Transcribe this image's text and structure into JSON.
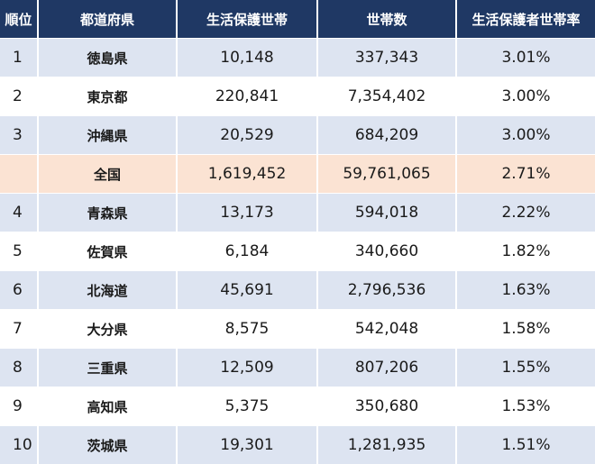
{
  "table": {
    "headers": [
      "順位",
      "都道府県",
      "生活保護世帯",
      "世帯数",
      "生活保護者世帯率"
    ],
    "rows": [
      {
        "rank": "1",
        "pref": "徳島県",
        "welfare": "10,148",
        "households": "337,343",
        "rate": "3.01%"
      },
      {
        "rank": "2",
        "pref": "東京都",
        "welfare": "220,841",
        "households": "7,354,402",
        "rate": "3.00%"
      },
      {
        "rank": "3",
        "pref": "沖縄県",
        "welfare": "20,529",
        "households": "684,209",
        "rate": "3.00%"
      },
      {
        "rank": "",
        "pref": "全国",
        "welfare": "1,619,452",
        "households": "59,761,065",
        "rate": "2.71%"
      },
      {
        "rank": "4",
        "pref": "青森県",
        "welfare": "13,173",
        "households": "594,018",
        "rate": "2.22%"
      },
      {
        "rank": "5",
        "pref": "佐賀県",
        "welfare": "6,184",
        "households": "340,660",
        "rate": "1.82%"
      },
      {
        "rank": "6",
        "pref": "北海道",
        "welfare": "45,691",
        "households": "2,796,536",
        "rate": "1.63%"
      },
      {
        "rank": "7",
        "pref": "大分県",
        "welfare": "8,575",
        "households": "542,048",
        "rate": "1.58%"
      },
      {
        "rank": "8",
        "pref": "三重県",
        "welfare": "12,509",
        "households": "807,206",
        "rate": "1.55%"
      },
      {
        "rank": "9",
        "pref": "高知県",
        "welfare": "5,375",
        "households": "350,680",
        "rate": "1.53%"
      },
      {
        "rank": "10",
        "pref": "茨城県",
        "welfare": "19,301",
        "households": "1,281,935",
        "rate": "1.51%"
      }
    ]
  },
  "colors": {
    "header_bg": "#1f3864",
    "row_alt": "#dde4f1",
    "national_highlight": "#fbe3d3"
  }
}
